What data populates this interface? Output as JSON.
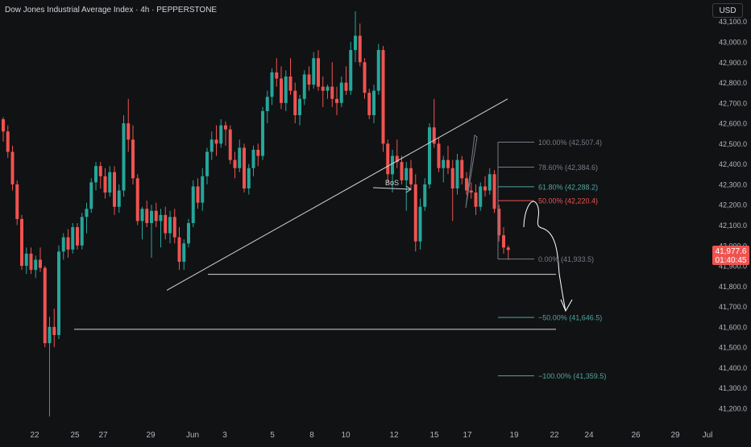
{
  "header": {
    "title": "Dow Jones Industrial Average Index · 4h · PEPPERSTONE",
    "currency": "USD"
  },
  "colors": {
    "background": "#111214",
    "up": "#26a69a",
    "down": "#ef5350",
    "axis_text": "#b2b5be",
    "drawing": "#d1d4dc",
    "fib_gray": "#787b86",
    "fib_teal": "#4fa6a0",
    "fib_red": "#ef5350"
  },
  "chart_data": {
    "type": "candlestick",
    "interval": "4h",
    "y_axis": {
      "ticks": [
        41200,
        41300,
        41400,
        41500,
        41600,
        41700,
        41800,
        41900,
        42000,
        42100,
        42200,
        42300,
        42400,
        42500,
        42600,
        42700,
        42800,
        42900,
        43000,
        43100
      ],
      "tick_labels": [
        "41,200.0",
        "41,300.0",
        "41,400.0",
        "41,500.0",
        "41,600.0",
        "41,700.0",
        "41,800.0",
        "41,900.0",
        "42,000.0",
        "42,100.0",
        "42,200.0",
        "42,300.0",
        "42,400.0",
        "42,500.0",
        "42,600.0",
        "42,700.0",
        "42,800.0",
        "42,900.0",
        "43,000.0",
        "43,100.0"
      ],
      "range": [
        41150,
        43190
      ]
    },
    "x_axis": {
      "labels": [
        "22",
        "25",
        "27",
        "29",
        "Jun",
        "3",
        "5",
        "8",
        "10",
        "12",
        "15",
        "17",
        "19",
        "22",
        "24",
        "26",
        "29",
        "Jul"
      ]
    },
    "candles": [
      [
        42620,
        42630,
        42510,
        42560
      ],
      [
        42560,
        42590,
        42430,
        42460
      ],
      [
        42460,
        42490,
        42270,
        42300
      ],
      [
        42300,
        42320,
        42100,
        42130
      ],
      [
        42130,
        42150,
        41880,
        41900
      ],
      [
        41900,
        41990,
        41860,
        41960
      ],
      [
        41960,
        41990,
        41860,
        41880
      ],
      [
        41880,
        41950,
        41840,
        41930
      ],
      [
        41930,
        41990,
        41870,
        41890
      ],
      [
        41890,
        41900,
        41500,
        41520
      ],
      [
        41520,
        41650,
        41160,
        41600
      ],
      [
        41600,
        41690,
        41500,
        41560
      ],
      [
        41560,
        42000,
        41540,
        41970
      ],
      [
        41970,
        42060,
        41930,
        42040
      ],
      [
        42040,
        42080,
        41940,
        41980
      ],
      [
        41980,
        42110,
        41960,
        42090
      ],
      [
        42090,
        42110,
        41980,
        42000
      ],
      [
        42000,
        42160,
        41980,
        42140
      ],
      [
        42140,
        42210,
        42060,
        42180
      ],
      [
        42180,
        42330,
        42160,
        42310
      ],
      [
        42310,
        42410,
        42270,
        42390
      ],
      [
        42390,
        42410,
        42280,
        42340
      ],
      [
        42340,
        42380,
        42230,
        42260
      ],
      [
        42260,
        42390,
        42240,
        42360
      ],
      [
        42360,
        42390,
        42150,
        42190
      ],
      [
        42190,
        42300,
        42160,
        42270
      ],
      [
        42270,
        42640,
        42240,
        42600
      ],
      [
        42600,
        42720,
        42460,
        42520
      ],
      [
        42520,
        42590,
        42300,
        42330
      ],
      [
        42330,
        42350,
        42100,
        42120
      ],
      [
        42120,
        42190,
        42030,
        42180
      ],
      [
        42180,
        42220,
        42090,
        42110
      ],
      [
        42110,
        42200,
        41940,
        42170
      ],
      [
        42170,
        42210,
        42090,
        42120
      ],
      [
        42120,
        42180,
        41990,
        42150
      ],
      [
        42150,
        42190,
        42030,
        42060
      ],
      [
        42060,
        42170,
        42010,
        42140
      ],
      [
        42140,
        42180,
        42010,
        42040
      ],
      [
        42040,
        42090,
        41880,
        41920
      ],
      [
        41920,
        42030,
        41880,
        42010
      ],
      [
        42010,
        42130,
        41990,
        42110
      ],
      [
        42110,
        42320,
        42090,
        42290
      ],
      [
        42290,
        42330,
        42180,
        42210
      ],
      [
        42210,
        42380,
        42170,
        42340
      ],
      [
        42340,
        42480,
        42300,
        42460
      ],
      [
        42460,
        42560,
        42420,
        42520
      ],
      [
        42520,
        42590,
        42440,
        42500
      ],
      [
        42500,
        42620,
        42480,
        42590
      ],
      [
        42590,
        42610,
        42490,
        42570
      ],
      [
        42570,
        42590,
        42400,
        42420
      ],
      [
        42420,
        42460,
        42330,
        42380
      ],
      [
        42380,
        42520,
        42360,
        42480
      ],
      [
        42480,
        42500,
        42260,
        42280
      ],
      [
        42280,
        42400,
        42250,
        42380
      ],
      [
        42380,
        42490,
        42340,
        42470
      ],
      [
        42470,
        42500,
        42390,
        42440
      ],
      [
        42440,
        42680,
        42420,
        42660
      ],
      [
        42660,
        42760,
        42600,
        42730
      ],
      [
        42730,
        42870,
        42690,
        42850
      ],
      [
        42850,
        42920,
        42780,
        42820
      ],
      [
        42820,
        42880,
        42670,
        42700
      ],
      [
        42700,
        42860,
        42660,
        42830
      ],
      [
        42830,
        42920,
        42740,
        42760
      ],
      [
        42760,
        42800,
        42600,
        42640
      ],
      [
        42640,
        42740,
        42590,
        42720
      ],
      [
        42720,
        42860,
        42690,
        42840
      ],
      [
        42840,
        42880,
        42760,
        42790
      ],
      [
        42790,
        42950,
        42770,
        42920
      ],
      [
        42920,
        42960,
        42760,
        42780
      ],
      [
        42780,
        42830,
        42680,
        42760
      ],
      [
        42760,
        42790,
        42720,
        42780
      ],
      [
        42780,
        42900,
        42680,
        42720
      ],
      [
        42720,
        42780,
        42640,
        42700
      ],
      [
        42700,
        42830,
        42680,
        42800
      ],
      [
        42800,
        42880,
        42740,
        42760
      ],
      [
        42760,
        43000,
        42740,
        42960
      ],
      [
        42960,
        43150,
        42900,
        43030
      ],
      [
        43030,
        43090,
        42880,
        42900
      ],
      [
        42900,
        42920,
        42720,
        42750
      ],
      [
        42750,
        42770,
        42620,
        42640
      ],
      [
        42640,
        42790,
        42600,
        42760
      ],
      [
        42760,
        42990,
        42740,
        42960
      ],
      [
        42960,
        42980,
        42460,
        42500
      ],
      [
        42500,
        42520,
        42310,
        42350
      ],
      [
        42350,
        42470,
        42260,
        42440
      ],
      [
        42440,
        42520,
        42380,
        42410
      ],
      [
        42410,
        42440,
        42300,
        42320
      ],
      [
        42320,
        42410,
        42170,
        42380
      ],
      [
        42380,
        42420,
        42280,
        42300
      ],
      [
        42300,
        42350,
        41970,
        42020
      ],
      [
        42020,
        42230,
        41980,
        42190
      ],
      [
        42190,
        42330,
        42170,
        42300
      ],
      [
        42300,
        42600,
        42280,
        42580
      ],
      [
        42580,
        42720,
        42480,
        42500
      ],
      [
        42500,
        42530,
        42360,
        42380
      ],
      [
        42380,
        42440,
        42310,
        42420
      ],
      [
        42420,
        42490,
        42350,
        42380
      ],
      [
        42380,
        42420,
        42120,
        42280
      ],
      [
        42280,
        42450,
        42250,
        42420
      ],
      [
        42420,
        42440,
        42300,
        42330
      ],
      [
        42330,
        42360,
        42250,
        42270
      ],
      [
        42270,
        42310,
        42230,
        42260
      ],
      [
        42260,
        42300,
        42150,
        42190
      ],
      [
        42190,
        42310,
        42170,
        42290
      ],
      [
        42290,
        42340,
        42240,
        42270
      ],
      [
        42270,
        42380,
        42250,
        42350
      ],
      [
        42350,
        42370,
        42160,
        42180
      ],
      [
        42180,
        42200,
        42020,
        42050
      ],
      [
        42050,
        42090,
        41960,
        41990
      ],
      [
        41990,
        42000,
        41930,
        41978
      ]
    ],
    "horizontal_lines": [
      41858,
      41588
    ],
    "trendline": {
      "from": [
        41780,
        "27 May"
      ],
      "to": [
        42720,
        "18 Jun"
      ]
    },
    "annotations": [
      "BoS"
    ],
    "fib_levels": [
      {
        "label": "100.00% (42,507.4)",
        "value": 42507.4,
        "color": "#787b86"
      },
      {
        "label": "78.60% (42,384.6)",
        "value": 42384.6,
        "color": "#787b86"
      },
      {
        "label": "61.80% (42,288.2)",
        "value": 42288.2,
        "color": "#4fa6a0"
      },
      {
        "label": "50.00% (42,220.4)",
        "value": 42220.4,
        "color": "#ef5350"
      },
      {
        "label": "0.00% (41,933.5)",
        "value": 41933.5,
        "color": "#787b86"
      },
      {
        "label": "−50.00% (41,646.5)",
        "value": 41646.5,
        "color": "#4fa6a0"
      },
      {
        "label": "−100.00% (41,359.5)",
        "value": 41359.5,
        "color": "#4fa6a0"
      }
    ],
    "last_price": {
      "price": "41,977.6",
      "countdown": "01:40:45",
      "value": 41977.6
    }
  }
}
